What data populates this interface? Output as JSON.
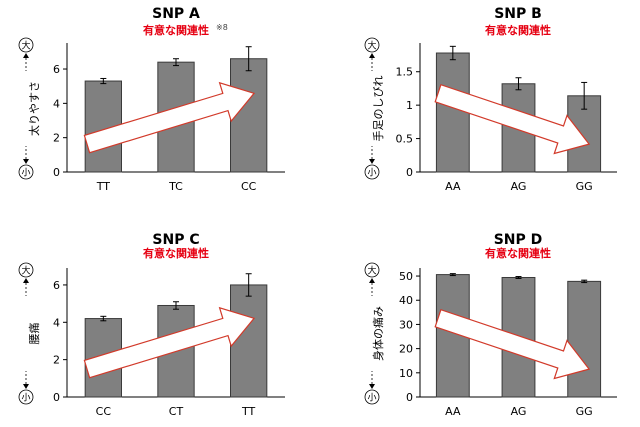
{
  "colors": {
    "bar": "#808080",
    "bar_border": "#3a3a3a",
    "accent": "#e60012",
    "arrow_border": "#d23a2a"
  },
  "chart_data": [
    {
      "type": "bar",
      "title": "SNP A",
      "subtitle": "有意な関連性",
      "note": "※8",
      "ylabel": "太りやすさ",
      "scale_high": "大",
      "scale_low": "小",
      "categories": [
        "TT",
        "TC",
        "CC"
      ],
      "values": [
        5.3,
        6.4,
        6.6
      ],
      "errors": [
        0.15,
        0.2,
        0.7
      ],
      "yticks": [
        "0",
        "2",
        "4",
        "6"
      ],
      "ylim": [
        0,
        7.4
      ],
      "trend": "up"
    },
    {
      "type": "bar",
      "title": "SNP B",
      "subtitle": "有意な関連性",
      "note": "",
      "ylabel": "手足のしびれ",
      "scale_high": "大",
      "scale_low": "小",
      "categories": [
        "AA",
        "AG",
        "GG"
      ],
      "values": [
        1.78,
        1.32,
        1.14
      ],
      "errors": [
        0.1,
        0.09,
        0.2
      ],
      "yticks": [
        "0",
        "0.5",
        "1",
        "1.5"
      ],
      "ylim": [
        0,
        1.9
      ],
      "trend": "down"
    },
    {
      "type": "bar",
      "title": "SNP C",
      "subtitle": "有意な関連性",
      "note": "",
      "ylabel": "腰痛",
      "scale_high": "大",
      "scale_low": "小",
      "categories": [
        "CC",
        "CT",
        "TT"
      ],
      "values": [
        4.2,
        4.9,
        6.0
      ],
      "errors": [
        0.12,
        0.2,
        0.6
      ],
      "yticks": [
        "0",
        "2",
        "4",
        "6"
      ],
      "ylim": [
        0,
        6.8
      ],
      "trend": "up"
    },
    {
      "type": "bar",
      "title": "SNP D",
      "subtitle": "有意な関連性",
      "note": "",
      "ylabel": "身体の痛み",
      "scale_high": "大",
      "scale_low": "小",
      "categories": [
        "AA",
        "AG",
        "GG"
      ],
      "values": [
        50.6,
        49.4,
        47.8
      ],
      "errors": [
        0.4,
        0.4,
        0.5
      ],
      "yticks": [
        "0",
        "10",
        "20",
        "30",
        "40",
        "50"
      ],
      "ylim": [
        0,
        52.5
      ],
      "trend": "down"
    }
  ]
}
